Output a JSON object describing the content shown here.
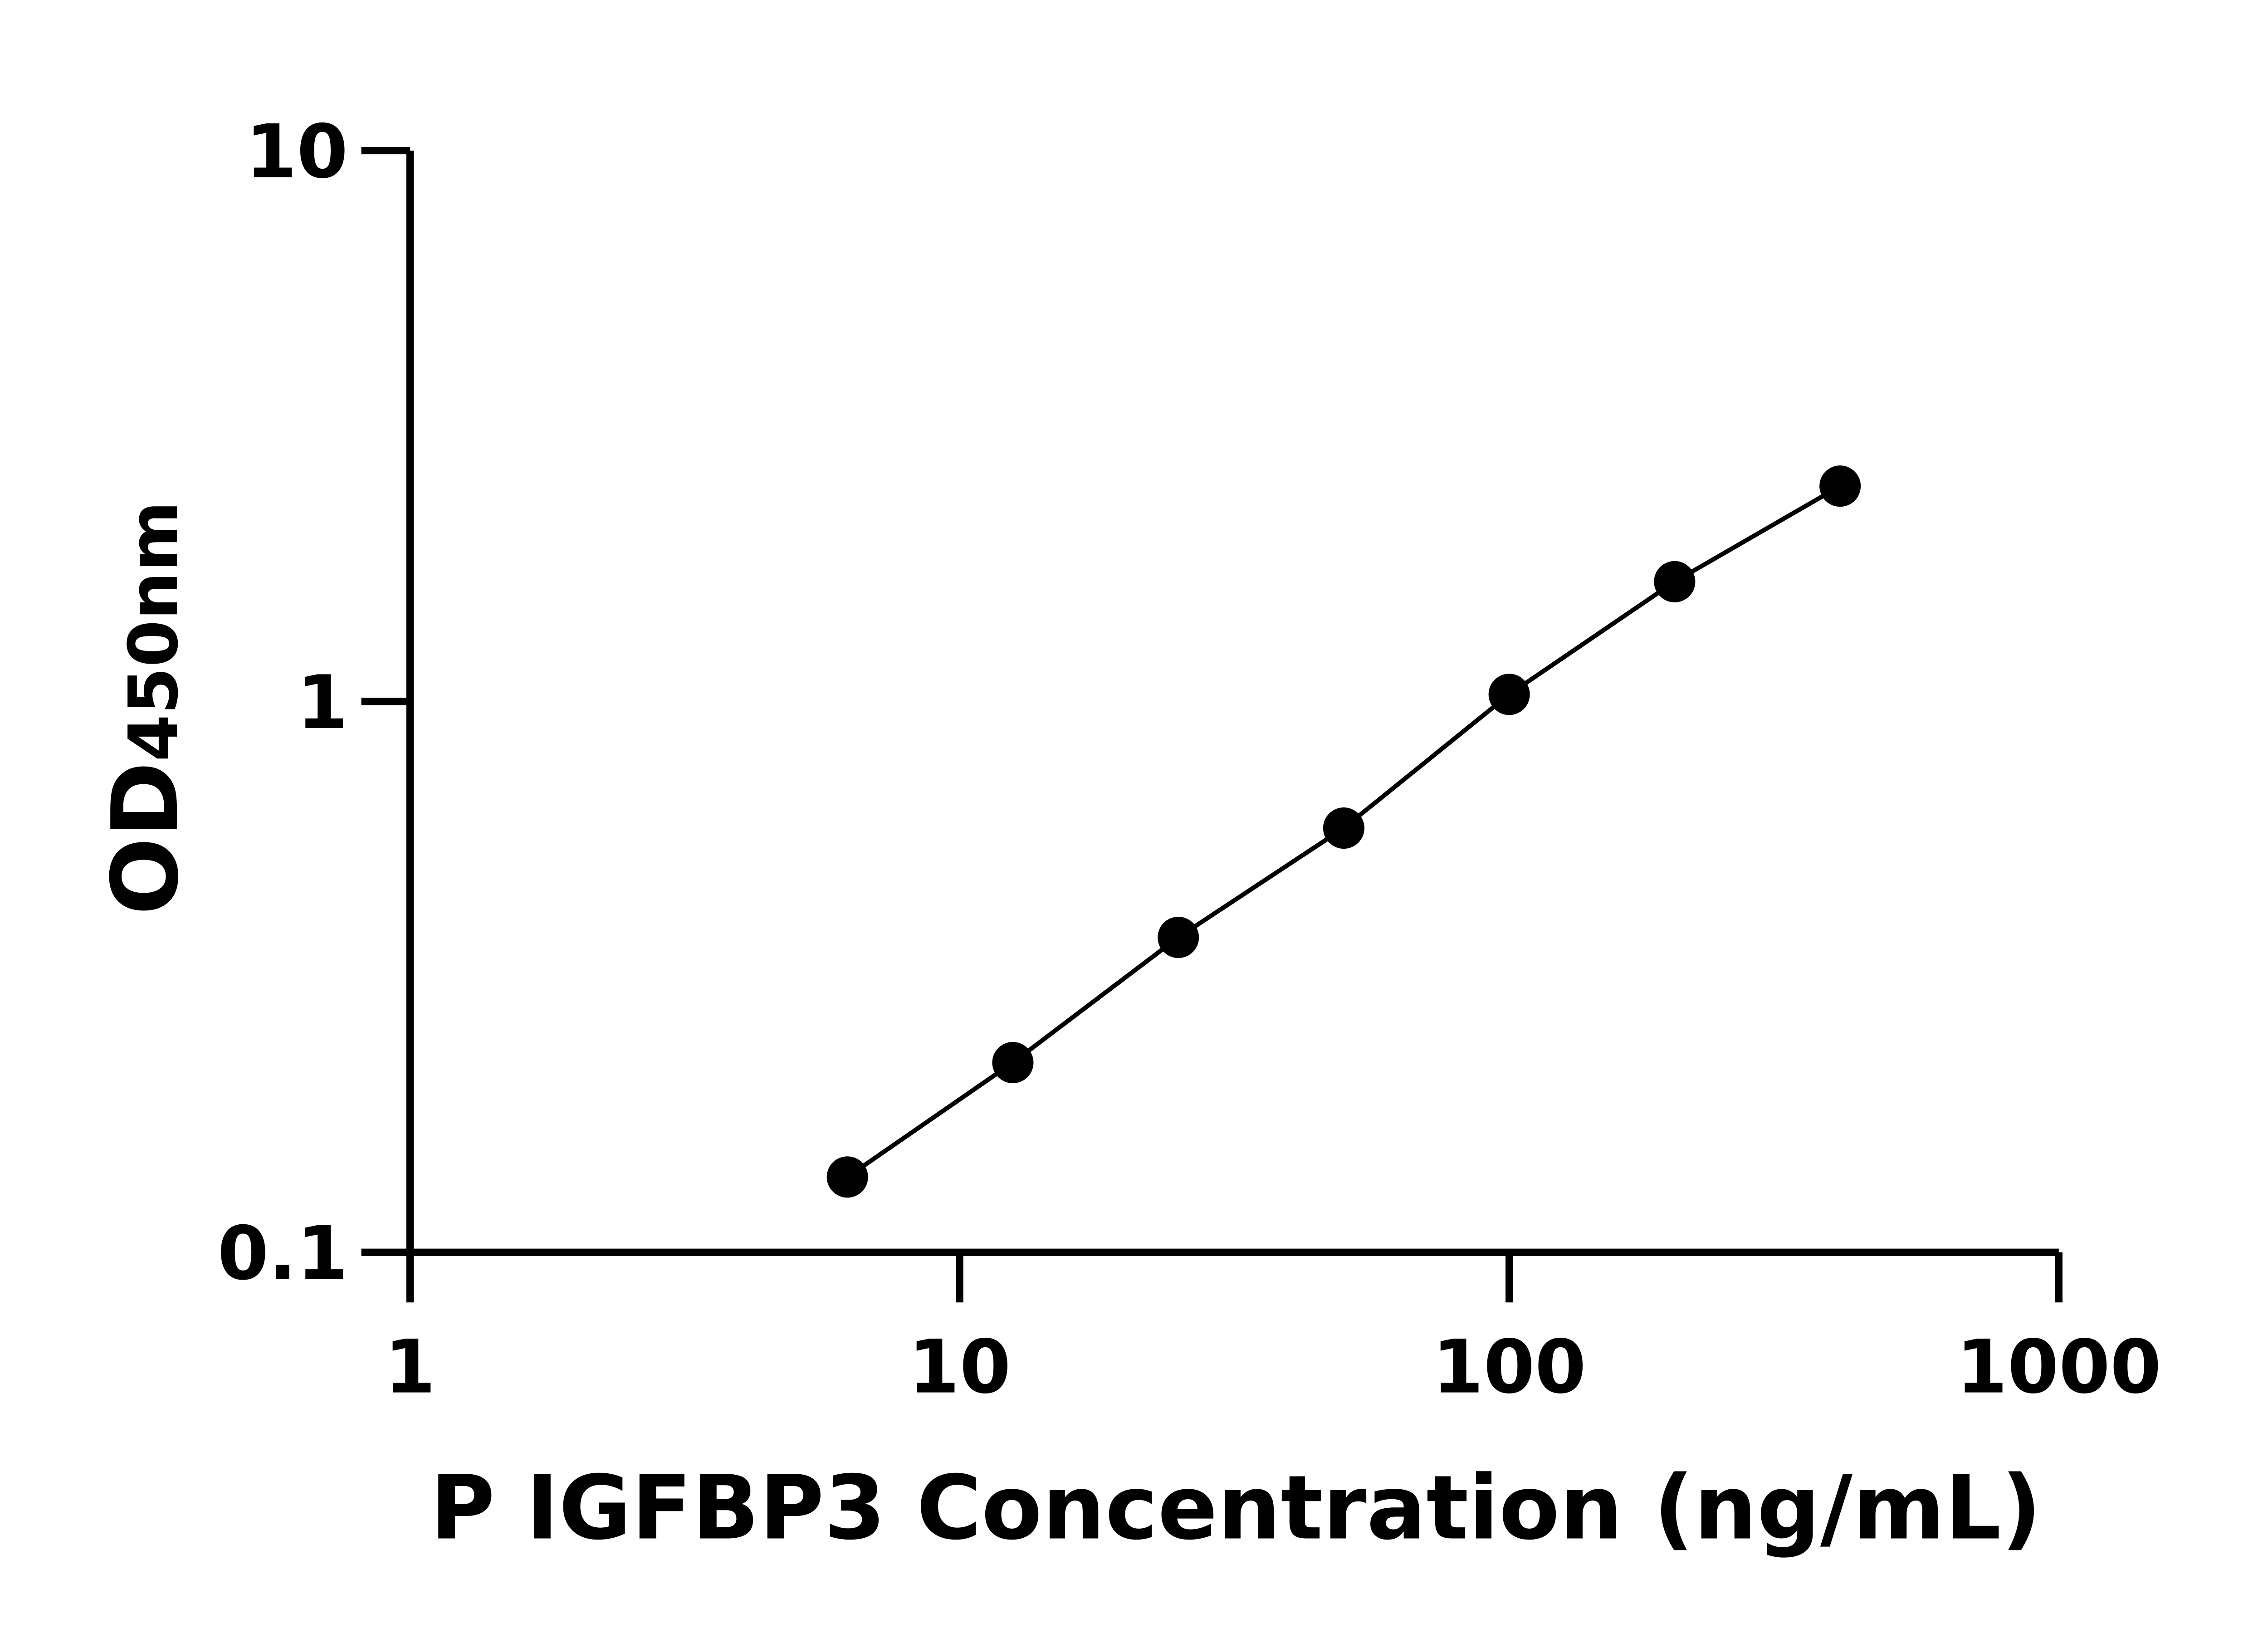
{
  "chart_data": {
    "type": "line",
    "title": "",
    "xlabel": "P IGFBP3 Concentration (ng/mL)",
    "ylabel_main": "OD",
    "ylabel_sub": "450nm",
    "x_scale": "log",
    "y_scale": "log",
    "xlim": [
      1,
      1000
    ],
    "ylim": [
      0.1,
      10
    ],
    "x_ticks": [
      {
        "value": 1,
        "label": "1"
      },
      {
        "value": 10,
        "label": "10"
      },
      {
        "value": 100,
        "label": "100"
      },
      {
        "value": 1000,
        "label": "1000"
      }
    ],
    "y_ticks": [
      {
        "value": 0.1,
        "label": "0.1"
      },
      {
        "value": 1,
        "label": "1"
      },
      {
        "value": 10,
        "label": "10"
      }
    ],
    "grid": false,
    "series": [
      {
        "marker": "circle",
        "color": "#000000",
        "x": [
          6.25,
          12.5,
          25,
          50,
          100,
          200,
          400
        ],
        "y": [
          0.137,
          0.221,
          0.373,
          0.589,
          1.03,
          1.65,
          2.46
        ]
      }
    ]
  }
}
